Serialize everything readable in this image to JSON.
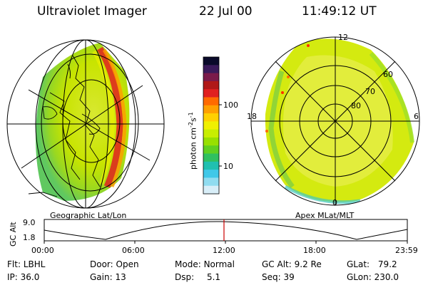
{
  "header": {
    "instrument": "Ultraviolet Imager",
    "date": "22 Jul 00",
    "time": "11:49:12 UT"
  },
  "colorbar": {
    "label": "photon cm",
    "label_sup1": "-2",
    "label_mid": "s",
    "label_sup2": "-1",
    "ticks": [
      "100",
      "10"
    ],
    "colors": [
      "#0a0a2a",
      "#3a1a5a",
      "#7a1a4a",
      "#b01818",
      "#e02020",
      "#ff6a00",
      "#ffa000",
      "#ffd000",
      "#f0f000",
      "#c8ee00",
      "#98e000",
      "#60d020",
      "#30c060",
      "#20c0b0",
      "#40c8e8",
      "#90dcf0",
      "#d8eef8"
    ]
  },
  "maps": {
    "left_caption": "Geographic Lat/Lon",
    "right_caption": "Apex MLat/MLT",
    "polar_labels": {
      "top": "12",
      "bottom": "0",
      "left": "18",
      "right": "6"
    },
    "lat_rings": [
      "60",
      "70",
      "80"
    ]
  },
  "altitude_plot": {
    "ylabel": "GC Alt",
    "ymax": "9.0",
    "ymin": "1.8",
    "xticks": [
      "00:00",
      "06:00",
      "12:00",
      "18:00",
      "23:59"
    ],
    "marker_color": "#cc0000"
  },
  "status": {
    "flt_label": "Flt:",
    "flt_value": "LBHL",
    "ip_label": "IP:",
    "ip_value": "36.0",
    "door_label": "Door:",
    "door_value": "Open",
    "gain_label": "Gain:",
    "gain_value": "13",
    "mode_label": "Mode:",
    "mode_value": "Normal",
    "dsp_label": "Dsp:",
    "dsp_value": "5.1",
    "gcalt_label": "GC Alt:",
    "gcalt_value": "9.2 Re",
    "seq_label": "Seq:",
    "seq_value": "39",
    "glat_label": "GLat:",
    "glat_value": "79.2",
    "glon_label": "GLon:",
    "glon_value": "230.0"
  }
}
